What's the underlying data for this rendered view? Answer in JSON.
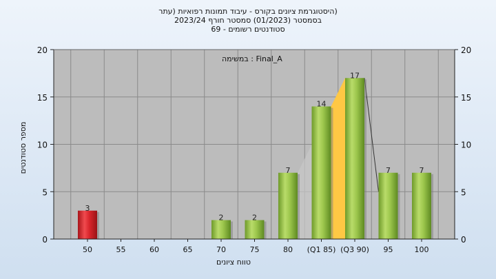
{
  "title": {
    "line1": "(היסטוגרמת ציונים בקורס - עיבוד תמונות רפואיות (עתר",
    "line2": "בסמסטר  (01/2023)  סמסטר חורף  2023/24",
    "line3": "סטודנטים רשומים - 69"
  },
  "annotation": "במשימה : Final_A",
  "colors": {
    "plot_bg": "#bcbcbc",
    "grid": "#8a8a8a",
    "bar_red": "#d8252b",
    "bar_green": "#8db83e",
    "quartile_fill": "#ffc844"
  },
  "chart_data": {
    "type": "bar",
    "categories": [
      "50",
      "55",
      "60",
      "65",
      "70",
      "75",
      "80",
      "(Q1 85)",
      "(Q3 90)",
      "95",
      "100"
    ],
    "values": [
      3,
      0,
      0,
      0,
      2,
      2,
      7,
      14,
      17,
      7,
      7
    ],
    "data_labels": [
      "3",
      "",
      "",
      "",
      "2",
      "2",
      "7",
      "14",
      "17",
      "7",
      "7"
    ],
    "highlight": {
      "category": "50",
      "color": "red"
    },
    "quartile_band": {
      "from": "(Q1 85)",
      "to": "(Q3 90)"
    },
    "xlabel": "טווח ציונים",
    "ylabel": "מספר סטודנטים",
    "ylim": [
      0,
      20
    ],
    "yticks": [
      "0",
      "5",
      "10",
      "15",
      "20"
    ],
    "grid": true,
    "right_axis": true
  }
}
